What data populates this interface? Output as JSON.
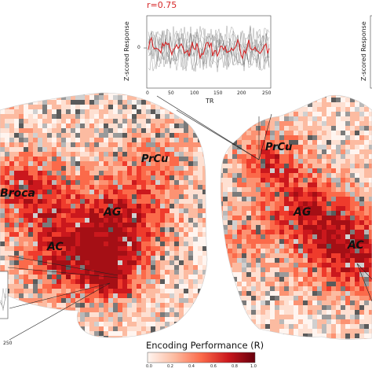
{
  "inset_plot": {
    "correlation_label": "r=0.75",
    "ylabel": "Z-scored Response",
    "xlabel": "TR",
    "ytick": "0",
    "xticks": [
      "0",
      "50",
      "100",
      "150",
      "200",
      "250"
    ],
    "trace_color": "#d62728"
  },
  "right_inset": {
    "ylabel": "Z-scored Response"
  },
  "left_inset": {
    "xtick": "250"
  },
  "regions_left": [
    "Broca",
    "PrCu",
    "AG",
    "AC"
  ],
  "regions_right": [
    "PrCu",
    "AG",
    "AC"
  ],
  "colorbar": {
    "title": "Encoding Performance (R)",
    "ticks": [
      "0.0",
      "0.2",
      "0.4",
      "0.6",
      "0.8",
      "1.0"
    ],
    "colors": [
      "#fff5f0",
      "#fcbba1",
      "#fb6a4a",
      "#cb181d",
      "#67000d"
    ]
  }
}
